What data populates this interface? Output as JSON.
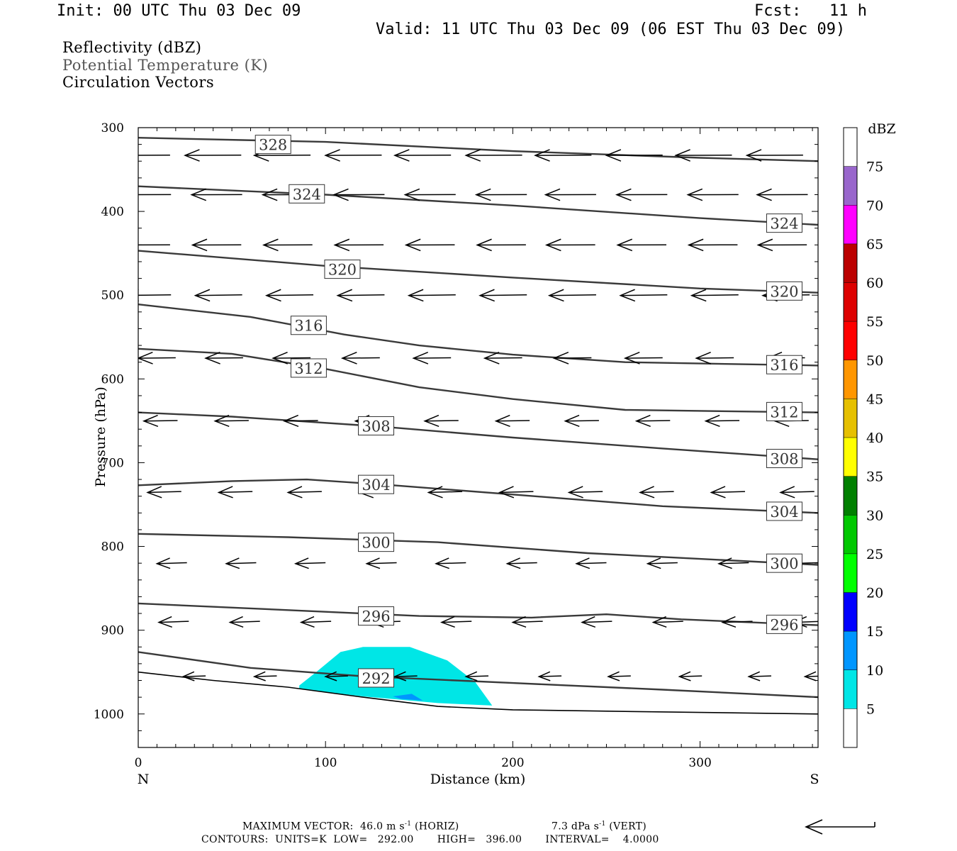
{
  "header": {
    "init": "Init: 00 UTC Thu 03 Dec 09",
    "fcst": "Fcst:   11 h",
    "valid": "Valid: 11 UTC Thu 03 Dec 09 (06 EST Thu 03 Dec 09)"
  },
  "legend_lines": [
    "Reflectivity (dBZ)",
    "Potential Temperature (K)",
    "Circulation Vectors"
  ],
  "footer": {
    "max_vector_prefix": "MAXIMUM VECTOR:  46.0 m s",
    "max_vector_horiz": " (HORIZ)",
    "max_vector_vert_prefix": "7.3 dPa s",
    "max_vector_vert": " (VERT)",
    "exponent": "-1",
    "contours": "CONTOURS:  UNITS=K  LOW=   292.00       HIGH=   396.00       INTERVAL=    4.0000"
  },
  "colors": {
    "contour": "#3a3a3a",
    "refl_5": "#00e6e6",
    "refl_10": "#0096ff",
    "refl_15": "#0000ff",
    "refl_20": "#00ff00",
    "refl_25": "#00c800",
    "refl_30": "#008000",
    "refl_35": "#ffff00",
    "refl_40": "#e6c000",
    "refl_45": "#ff9600",
    "refl_50": "#ff0000",
    "refl_55": "#dd0000",
    "refl_60": "#bb0000",
    "refl_65": "#ff00ff",
    "refl_70": "#9966cc"
  },
  "chart_data": {
    "type": "cross-section",
    "xlabel": "Distance (km)",
    "ylabel": "Pressure (hPa)",
    "xlim": [
      0,
      363
    ],
    "ylim": [
      1040,
      300
    ],
    "x_ticks": [
      0,
      100,
      200,
      300
    ],
    "y_ticks": [
      300,
      400,
      500,
      600,
      700,
      800,
      900,
      1000
    ],
    "end_labels": {
      "left": "N",
      "right": "S"
    },
    "colorbar": {
      "title": "dBZ",
      "levels": [
        5,
        10,
        15,
        20,
        25,
        30,
        35,
        40,
        45,
        50,
        55,
        60,
        65,
        70,
        75
      ],
      "colors": [
        "#00e6e6",
        "#0096ff",
        "#0000ff",
        "#00ff00",
        "#00c800",
        "#008000",
        "#ffff00",
        "#e6c000",
        "#ff9600",
        "#ff0000",
        "#dd0000",
        "#bb0000",
        "#ff00ff",
        "#9966cc"
      ]
    },
    "theta_contours": [
      {
        "label": "328",
        "points": [
          [
            0,
            312
          ],
          [
            100,
            317
          ],
          [
            200,
            328
          ],
          [
            300,
            336
          ],
          [
            363,
            340
          ]
        ],
        "label_at": [
          [
            72,
            320
          ]
        ]
      },
      {
        "label": "324",
        "points": [
          [
            0,
            370
          ],
          [
            100,
            380
          ],
          [
            200,
            393
          ],
          [
            300,
            408
          ],
          [
            363,
            416
          ]
        ],
        "label_at": [
          [
            90,
            379
          ],
          [
            345,
            414
          ]
        ]
      },
      {
        "label": "320",
        "points": [
          [
            0,
            447
          ],
          [
            100,
            465
          ],
          [
            200,
            479
          ],
          [
            300,
            492
          ],
          [
            363,
            497
          ]
        ],
        "label_at": [
          [
            109,
            469
          ],
          [
            345,
            495
          ]
        ]
      },
      {
        "label": "316",
        "points": [
          [
            0,
            511
          ],
          [
            60,
            526
          ],
          [
            110,
            547
          ],
          [
            150,
            560
          ],
          [
            200,
            571
          ],
          [
            260,
            580
          ],
          [
            363,
            584
          ]
        ],
        "label_at": [
          [
            91,
            536
          ],
          [
            345,
            583
          ]
        ]
      },
      {
        "label": "312",
        "points": [
          [
            0,
            564
          ],
          [
            50,
            570
          ],
          [
            100,
            588
          ],
          [
            150,
            610
          ],
          [
            200,
            624
          ],
          [
            260,
            637
          ],
          [
            363,
            640
          ]
        ],
        "label_at": [
          [
            91,
            587
          ],
          [
            345,
            639
          ]
        ]
      },
      {
        "label": "308",
        "points": [
          [
            0,
            640
          ],
          [
            50,
            645
          ],
          [
            130,
            657
          ],
          [
            200,
            670
          ],
          [
            280,
            683
          ],
          [
            363,
            696
          ]
        ],
        "label_at": [
          [
            127,
            656
          ],
          [
            345,
            695
          ]
        ]
      },
      {
        "label": "304",
        "points": [
          [
            0,
            727
          ],
          [
            50,
            722
          ],
          [
            90,
            720
          ],
          [
            130,
            726
          ],
          [
            200,
            738
          ],
          [
            280,
            752
          ],
          [
            363,
            760
          ]
        ],
        "label_at": [
          [
            127,
            726
          ],
          [
            345,
            758
          ]
        ]
      },
      {
        "label": "300",
        "points": [
          [
            0,
            785
          ],
          [
            80,
            789
          ],
          [
            160,
            795
          ],
          [
            240,
            808
          ],
          [
            363,
            822
          ]
        ],
        "label_at": [
          [
            127,
            795
          ],
          [
            345,
            820
          ]
        ]
      },
      {
        "label": "296",
        "points": [
          [
            0,
            868
          ],
          [
            80,
            876
          ],
          [
            150,
            883
          ],
          [
            210,
            885
          ],
          [
            250,
            881
          ],
          [
            290,
            887
          ],
          [
            363,
            894
          ]
        ],
        "label_at": [
          [
            127,
            883
          ],
          [
            345,
            893
          ]
        ]
      },
      {
        "label": "292",
        "points": [
          [
            0,
            926
          ],
          [
            60,
            945
          ],
          [
            120,
            955
          ],
          [
            200,
            963
          ],
          [
            280,
            971
          ],
          [
            363,
            980
          ]
        ],
        "label_at": [
          [
            127,
            957
          ]
        ]
      }
    ],
    "terrain_pressure": [
      [
        0,
        950
      ],
      [
        40,
        960
      ],
      [
        80,
        968
      ],
      [
        120,
        980
      ],
      [
        160,
        991
      ],
      [
        200,
        995
      ],
      [
        260,
        997
      ],
      [
        363,
        1000
      ]
    ],
    "reflectivity_regions": [
      {
        "dbz": 5,
        "polygon": [
          [
            86,
            966
          ],
          [
            95,
            950
          ],
          [
            108,
            926
          ],
          [
            120,
            920
          ],
          [
            145,
            920
          ],
          [
            165,
            936
          ],
          [
            180,
            962
          ],
          [
            189,
            990
          ],
          [
            160,
            987
          ],
          [
            120,
            979
          ],
          [
            86,
            970
          ]
        ]
      },
      {
        "dbz": 10,
        "polygon": [
          [
            136,
            979
          ],
          [
            146,
            976
          ],
          [
            152,
            984
          ],
          [
            140,
            982
          ]
        ]
      }
    ],
    "vectors": [
      {
        "p": 333,
        "xs": [
          2,
          40,
          77,
          115,
          152,
          190,
          227,
          265,
          302,
          340
        ],
        "dx": -30,
        "dy": 0.4
      },
      {
        "p": 380,
        "xs": [
          4,
          42,
          80,
          118,
          156,
          194,
          231,
          269,
          307,
          344
        ],
        "dx": -27,
        "dy": 0.3
      },
      {
        "p": 440,
        "xs": [
          4,
          42,
          80,
          118,
          156,
          194,
          231,
          269,
          307,
          344
        ],
        "dx": -26,
        "dy": 0.3
      },
      {
        "p": 500,
        "xs": [
          5,
          43,
          81,
          119,
          157,
          195,
          232,
          270,
          308,
          346
        ],
        "dx": -25,
        "dy": 1.0
      },
      {
        "p": 575,
        "xs": [
          10,
          46,
          82,
          119,
          157,
          195,
          232,
          270,
          308,
          346
        ],
        "dx": -20,
        "dy": 0.6
      },
      {
        "p": 650,
        "xs": [
          12,
          50,
          87,
          125,
          162,
          200,
          237,
          275,
          312,
          349
        ],
        "dx": -18,
        "dy": 0.8
      },
      {
        "p": 735,
        "xs": [
          14,
          52,
          89,
          127,
          164,
          202,
          239,
          277,
          315,
          352
        ],
        "dx": -18,
        "dy": 1.3
      },
      {
        "p": 820,
        "xs": [
          18,
          55,
          92,
          130,
          167,
          205,
          242,
          280,
          318,
          355
        ],
        "dx": -16,
        "dy": 1.4
      },
      {
        "p": 890,
        "xs": [
          19,
          57,
          95,
          132,
          170,
          208,
          245,
          283,
          320,
          358
        ],
        "dx": -16,
        "dy": 1.5
      },
      {
        "p": 955,
        "xs": [
          30,
          68,
          106,
          143,
          181,
          220,
          257,
          295,
          332,
          362
        ],
        "dx": -12,
        "dy": 1.0
      }
    ],
    "reference_vector": {
      "horiz": 46.0,
      "horiz_units": "m s-1",
      "vert": 7.3,
      "vert_units": "dPa s-1"
    }
  }
}
